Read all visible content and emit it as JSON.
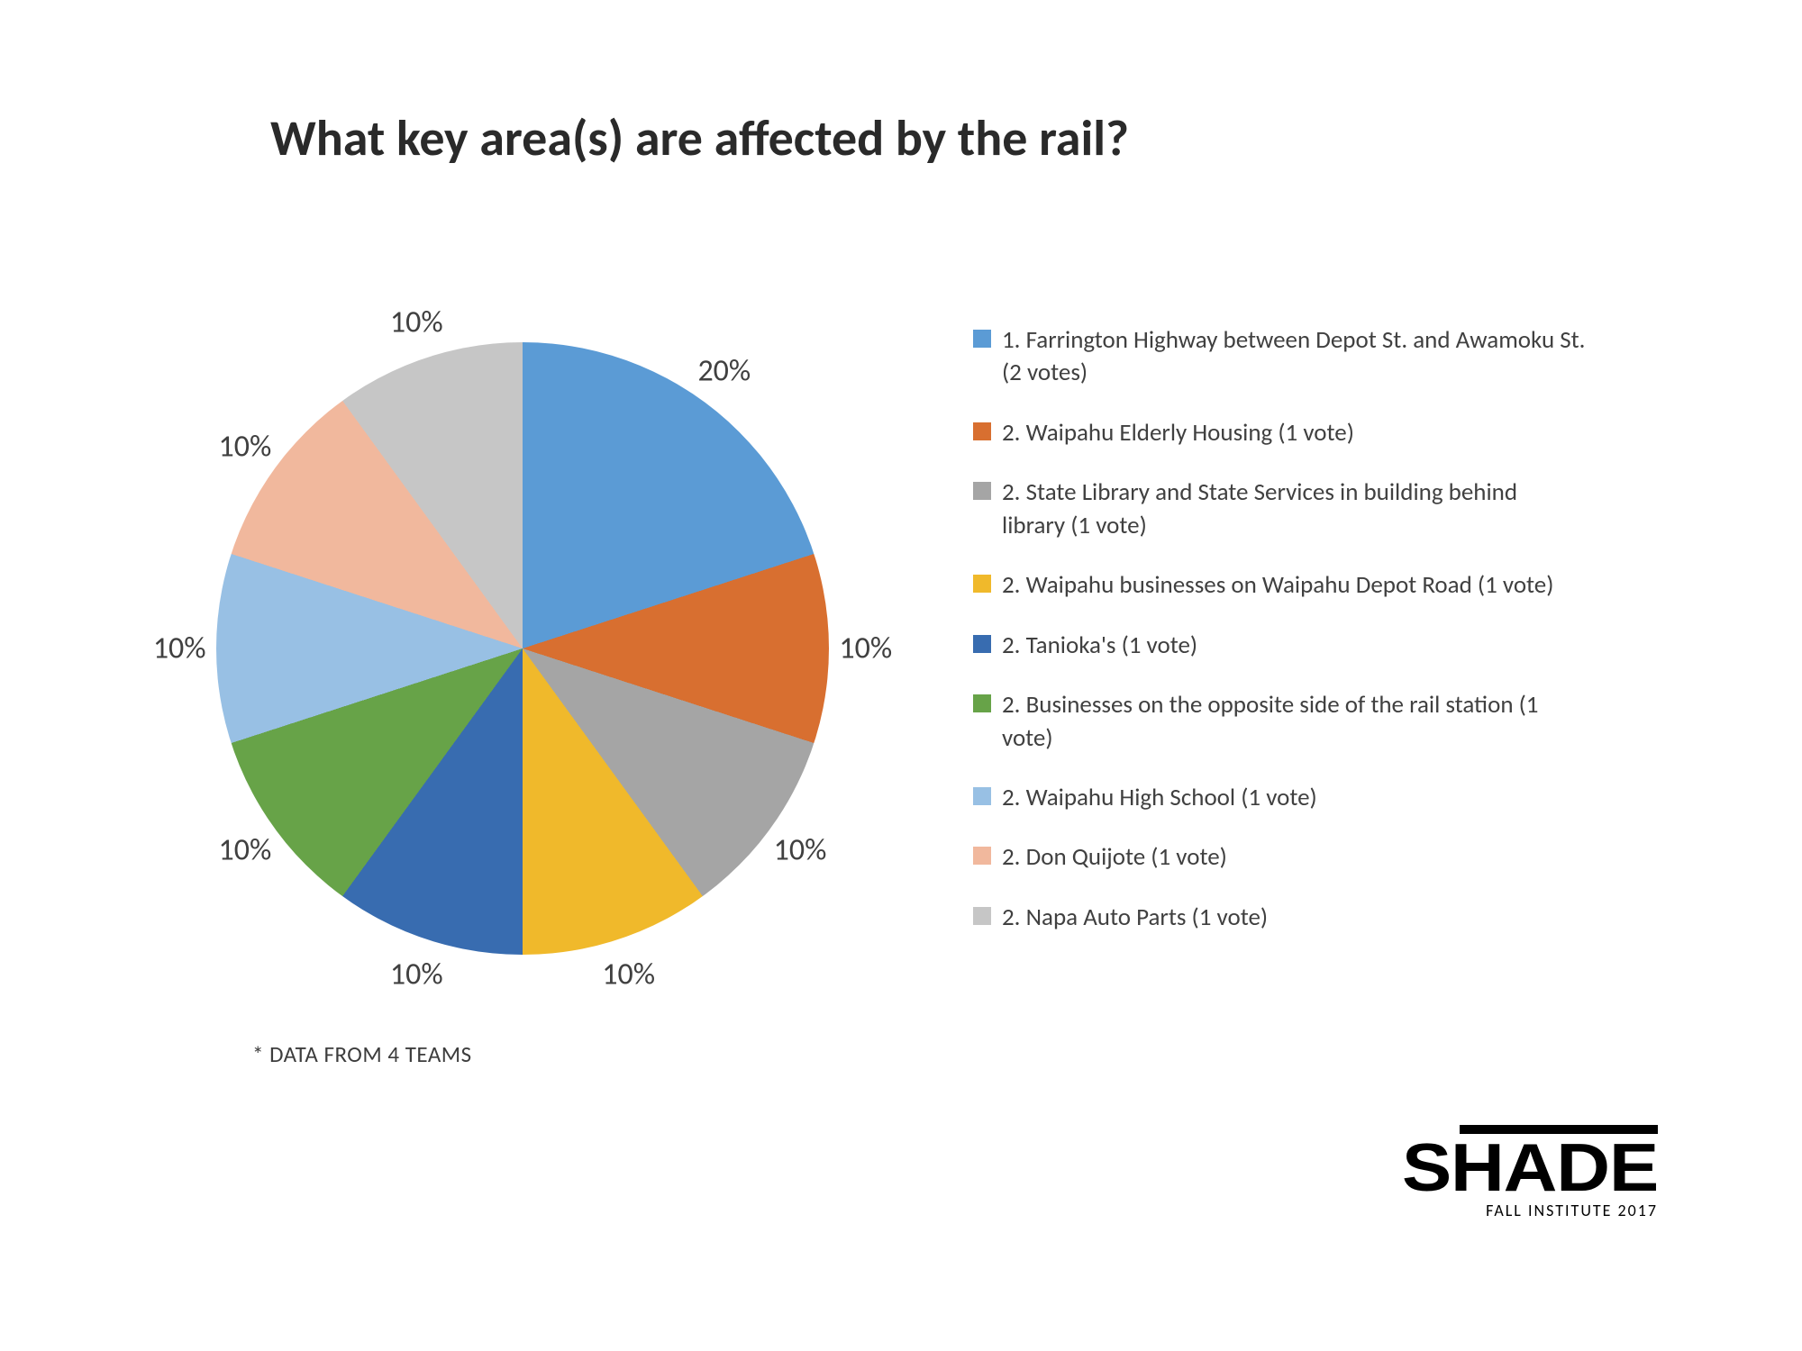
{
  "title": "What key area(s) are affected by the rail?",
  "footnote": "* DATA FROM 4 TEAMS",
  "logo": {
    "main": "SHADE",
    "sub": "FALL INSTITUTE 2017"
  },
  "chart": {
    "type": "pie",
    "background_color": "#ffffff",
    "label_fontsize": 34,
    "label_color": "#404040",
    "slices": [
      {
        "label": "1. Farrington Highway between Depot St. and Awamoku St. (2 votes)",
        "value": 20,
        "pct": "20%",
        "color": "#5b9bd5"
      },
      {
        "label": "2. Waipahu Elderly Housing (1 vote)",
        "value": 10,
        "pct": "10%",
        "color": "#d86f30"
      },
      {
        "label": "2. State Library and State Services in building behind library (1 vote)",
        "value": 10,
        "pct": "10%",
        "color": "#a5a5a5"
      },
      {
        "label": "2. Waipahu businesses on Waipahu Depot Road (1 vote)",
        "value": 10,
        "pct": "10%",
        "color": "#f0b92b"
      },
      {
        "label": "2. Tanioka's (1 vote)",
        "value": 10,
        "pct": "10%",
        "color": "#386cb0"
      },
      {
        "label": "2. Businesses on the opposite side of the rail station (1 vote)",
        "value": 10,
        "pct": "10%",
        "color": "#67a348"
      },
      {
        "label": "2. Waipahu High School (1 vote)",
        "value": 10,
        "pct": "10%",
        "color": "#98c0e4"
      },
      {
        "label": "2. Don Quijote (1 vote)",
        "value": 10,
        "pct": "10%",
        "color": "#f1b89d"
      },
      {
        "label": "2. Napa Auto Parts (1 vote)",
        "value": 10,
        "pct": "10%",
        "color": "#c6c6c6"
      }
    ],
    "legend": {
      "fontsize": 27,
      "swatch_size": 20
    },
    "label_radius_factor": 1.12
  }
}
